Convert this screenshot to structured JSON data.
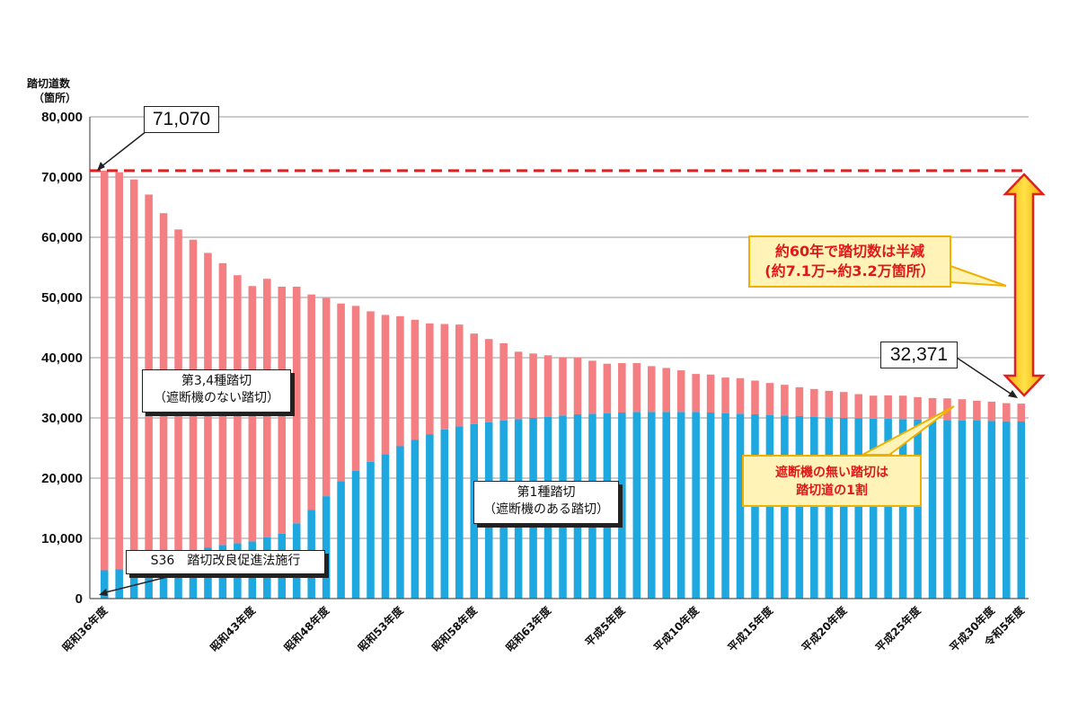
{
  "chart_data": {
    "type": "bar",
    "stacked": true,
    "ylabel": "踏切道数\n（箇所）",
    "ylim": [
      0,
      80000
    ],
    "yticks": [
      "0",
      "10,000",
      "20,000",
      "30,000",
      "40,000",
      "50,000",
      "60,000",
      "70,000",
      "80,000"
    ],
    "grid": true,
    "xtick_labels": {
      "0": "昭和36年度",
      "10": "昭和43年度",
      "15": "昭和48年度",
      "20": "昭和53年度",
      "25": "昭和58年度",
      "30": "昭和63年度",
      "35": "平成5年度",
      "40": "平成10年度",
      "45": "平成15年度",
      "50": "平成20年度",
      "55": "平成25年度",
      "60": "平成30年度",
      "62": "令和5年度"
    },
    "series": [
      {
        "name": "第1種踏切（遮断機のある踏切）",
        "color": "#1fa8e0",
        "values": [
          4700,
          4900,
          5500,
          6200,
          6900,
          7500,
          8000,
          8500,
          8900,
          9200,
          9500,
          10200,
          10800,
          12500,
          14700,
          17000,
          19500,
          21200,
          22700,
          24000,
          25300,
          26400,
          27300,
          28100,
          28600,
          29000,
          29300,
          29600,
          29800,
          30000,
          30200,
          30400,
          30600,
          30700,
          30800,
          30900,
          31000,
          31000,
          31000,
          31000,
          31000,
          30900,
          30800,
          30700,
          30600,
          30500,
          30400,
          30300,
          30200,
          30100,
          30000,
          29950,
          29900,
          29850,
          29800,
          29750,
          29700,
          29650,
          29600,
          29550,
          29500,
          29450,
          29400
        ]
      },
      {
        "name": "第3,4種踏切（遮断機のない踏切）",
        "color": "#f47f82",
        "values": [
          66370,
          65900,
          64100,
          60900,
          57100,
          53800,
          51600,
          48900,
          46800,
          44500,
          42400,
          42900,
          41000,
          39300,
          35800,
          32900,
          29500,
          27400,
          25000,
          23100,
          21600,
          19900,
          18400,
          17500,
          16900,
          15000,
          13800,
          12800,
          11200,
          10700,
          10200,
          9700,
          9400,
          8800,
          8200,
          8200,
          8100,
          7600,
          7300,
          6900,
          6300,
          6300,
          5900,
          5900,
          5600,
          5300,
          5100,
          4800,
          4600,
          4400,
          4300,
          4000,
          3800,
          3900,
          3900,
          3700,
          3600,
          3600,
          3500,
          3300,
          3200,
          3000,
          2971
        ]
      }
    ],
    "reference_line": {
      "value": 71070,
      "color": "#e02020",
      "style": "dashed"
    },
    "annotations": {
      "peak_value": "71,070",
      "latest_value": "32,371",
      "law_label": "S36　踏切改良促進法施行",
      "type34_label_line1": "第3,4種踏切",
      "type34_label_line2": "（遮断機のない踏切）",
      "type1_label_line1": "第1種踏切",
      "type1_label_line2": "（遮断機のある踏切）",
      "halved_line1": "約60年で踏切数は半減",
      "halved_line2": "(約7.1万→約3.2万箇所）",
      "unbarrier_line1": "遮断機の無い踏切は",
      "unbarrier_line2": "踏切道の1割"
    }
  }
}
